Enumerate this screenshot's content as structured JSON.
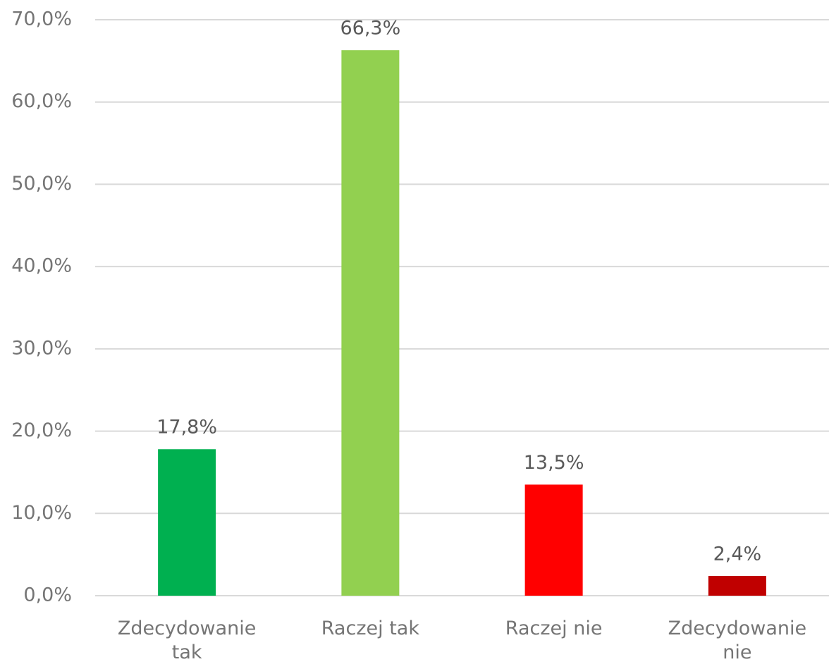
{
  "chart_data": {
    "type": "bar",
    "categories": [
      "Zdecydowanie tak",
      "Raczej tak",
      "Raczej nie",
      "Zdecydowanie nie"
    ],
    "values": [
      17.8,
      66.3,
      13.5,
      2.4
    ],
    "value_labels": [
      "17,8%",
      "66,3%",
      "13,5%",
      "2,4%"
    ],
    "colors": [
      "#00b050",
      "#92d050",
      "#ff0000",
      "#c00000"
    ],
    "ylim": [
      0,
      70
    ],
    "yticks": [
      {
        "value": 0,
        "label": "0,0%"
      },
      {
        "value": 10,
        "label": "10,0%"
      },
      {
        "value": 20,
        "label": "20,0%"
      },
      {
        "value": 30,
        "label": "30,0%"
      },
      {
        "value": 40,
        "label": "40,0%"
      },
      {
        "value": 50,
        "label": "50,0%"
      },
      {
        "value": 60,
        "label": "60,0%"
      },
      {
        "value": 70,
        "label": "70,0%"
      }
    ],
    "grid": true
  }
}
